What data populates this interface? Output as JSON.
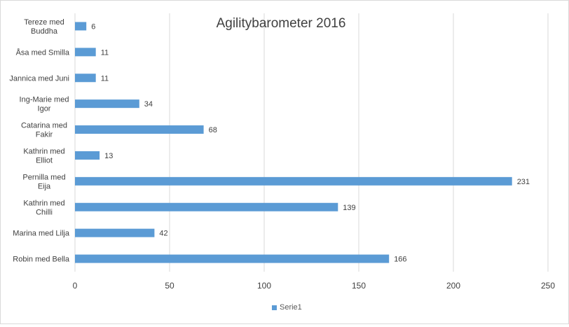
{
  "chart_data": {
    "type": "bar",
    "orientation": "horizontal",
    "title": "Agilitybarometer 2016",
    "xlabel": "",
    "ylabel": "",
    "categories": [
      "Robin med Bella",
      "Marina med Lilja",
      "Kathrin med Chilli",
      "Pernilla med Eija",
      "Kathrin med Elliot",
      "Catarina med Fakir",
      "Ing-Marie med Igor",
      "Jannica med Juni",
      "Åsa med Smilla",
      "Tereze med Buddha"
    ],
    "series": [
      {
        "name": "Serie1",
        "values": [
          166,
          42,
          139,
          231,
          13,
          68,
          34,
          11,
          11,
          6
        ],
        "color": "#5b9bd5"
      }
    ],
    "xlim": [
      0,
      250
    ],
    "xticks": [
      0,
      50,
      100,
      150,
      200,
      250
    ],
    "grid": true,
    "data_labels": true,
    "legend_position": "bottom"
  }
}
